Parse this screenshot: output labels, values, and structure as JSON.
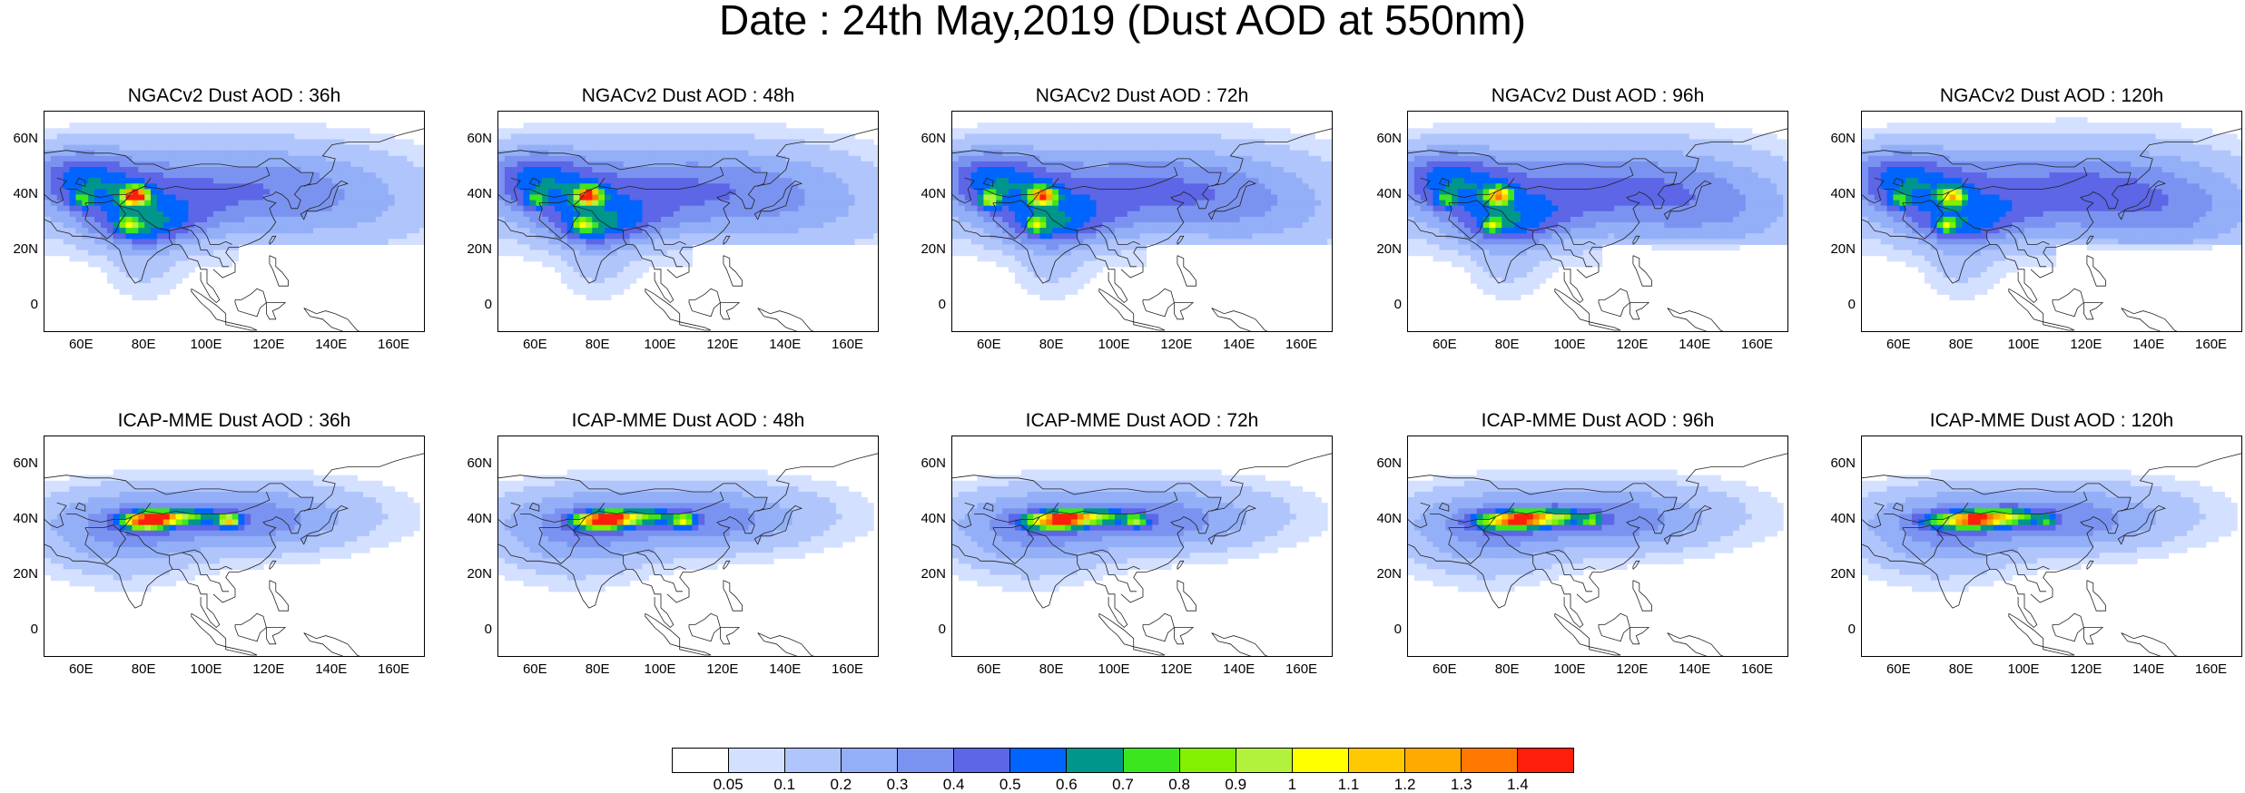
{
  "title": "Date : 24th May,2019 (Dust AOD at 550nm)",
  "lat_ticks": [
    "60N",
    "40N",
    "20N",
    "0"
  ],
  "lon_ticks": [
    "60E",
    "80E",
    "100E",
    "120E",
    "140E",
    "160E"
  ],
  "colorbar": {
    "colors": [
      "#ffffff",
      "#d4e0ff",
      "#b0c5fb",
      "#93aff7",
      "#7b93f0",
      "#5c66e6",
      "#0064ff",
      "#00968c",
      "#3ce61e",
      "#82f000",
      "#b2f23c",
      "#ffff00",
      "#ffc800",
      "#ffaa00",
      "#ff7800",
      "#ff1e0a"
    ],
    "labels": [
      "0.05",
      "0.1",
      "0.2",
      "0.3",
      "0.4",
      "0.5",
      "0.6",
      "0.7",
      "0.8",
      "0.9",
      "1",
      "1.1",
      "1.2",
      "1.3",
      "1.4"
    ]
  },
  "panels": [
    {
      "title": "NGACv2 Dust AOD : 36h",
      "model": "ngac",
      "hours": 36
    },
    {
      "title": "NGACv2 Dust AOD : 48h",
      "model": "ngac",
      "hours": 48
    },
    {
      "title": "NGACv2 Dust AOD : 72h",
      "model": "ngac",
      "hours": 72
    },
    {
      "title": "NGACv2 Dust AOD : 96h",
      "model": "ngac",
      "hours": 96
    },
    {
      "title": "NGACv2 Dust AOD : 120h",
      "model": "ngac",
      "hours": 120
    },
    {
      "title": "ICAP-MME Dust AOD : 36h",
      "model": "icap",
      "hours": 36
    },
    {
      "title": "ICAP-MME Dust AOD : 48h",
      "model": "icap",
      "hours": 48
    },
    {
      "title": "ICAP-MME Dust AOD : 72h",
      "model": "icap",
      "hours": 72
    },
    {
      "title": "ICAP-MME Dust AOD : 96h",
      "model": "icap",
      "hours": 96
    },
    {
      "title": "ICAP-MME Dust AOD : 120h",
      "model": "icap",
      "hours": 120
    }
  ]
}
